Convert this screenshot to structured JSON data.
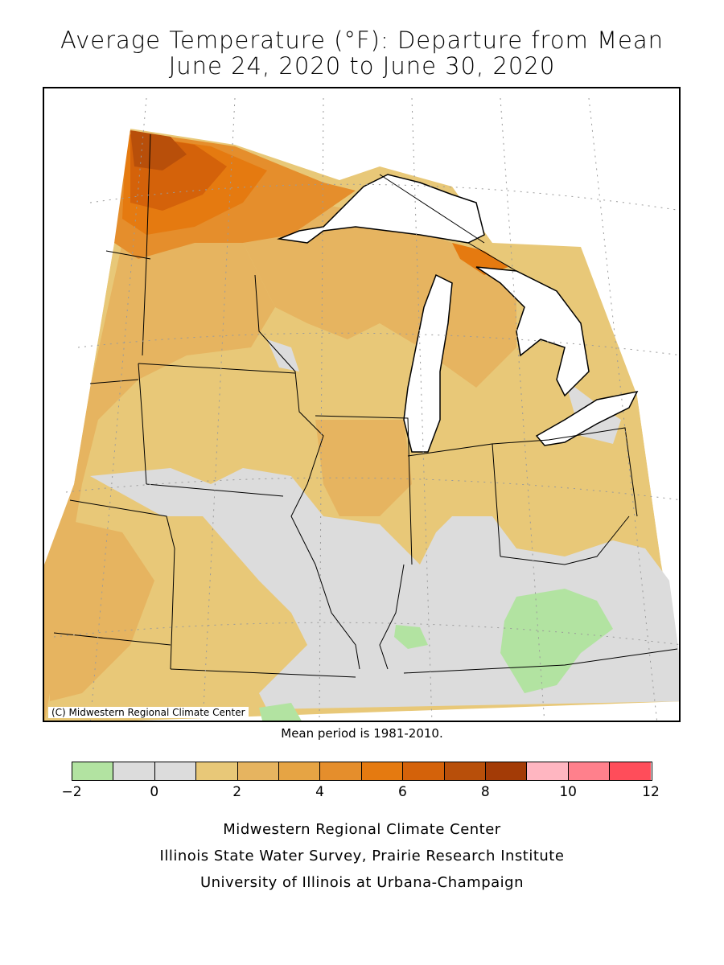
{
  "title_line1": "Average Temperature (°F): Departure from Mean",
  "title_line2": "June 24, 2020 to June 30, 2020",
  "copyright": "(C) Midwestern Regional Climate Center",
  "mean_period": "Mean period is 1981-2010.",
  "legend": {
    "colors": [
      "#b2e3a1",
      "#dcdcdc",
      "#dcdcdc",
      "#e8c878",
      "#e6b460",
      "#e6a444",
      "#e58e2c",
      "#e57a10",
      "#d4620a",
      "#b84f0a",
      "#a33b06",
      "#ffb6c1",
      "#ff808c",
      "#ff4d5a"
    ],
    "ticks": [
      "−2",
      "0",
      "2",
      "4",
      "6",
      "8",
      "10",
      "12"
    ],
    "tick_values": [
      -2,
      0,
      2,
      4,
      6,
      8,
      10,
      12
    ]
  },
  "footer": {
    "line1": "Midwestern Regional Climate Center",
    "line2": "Illinois State Water Survey, Prairie Research Institute",
    "line3": "University of Illinois at Urbana-Champaign"
  }
}
